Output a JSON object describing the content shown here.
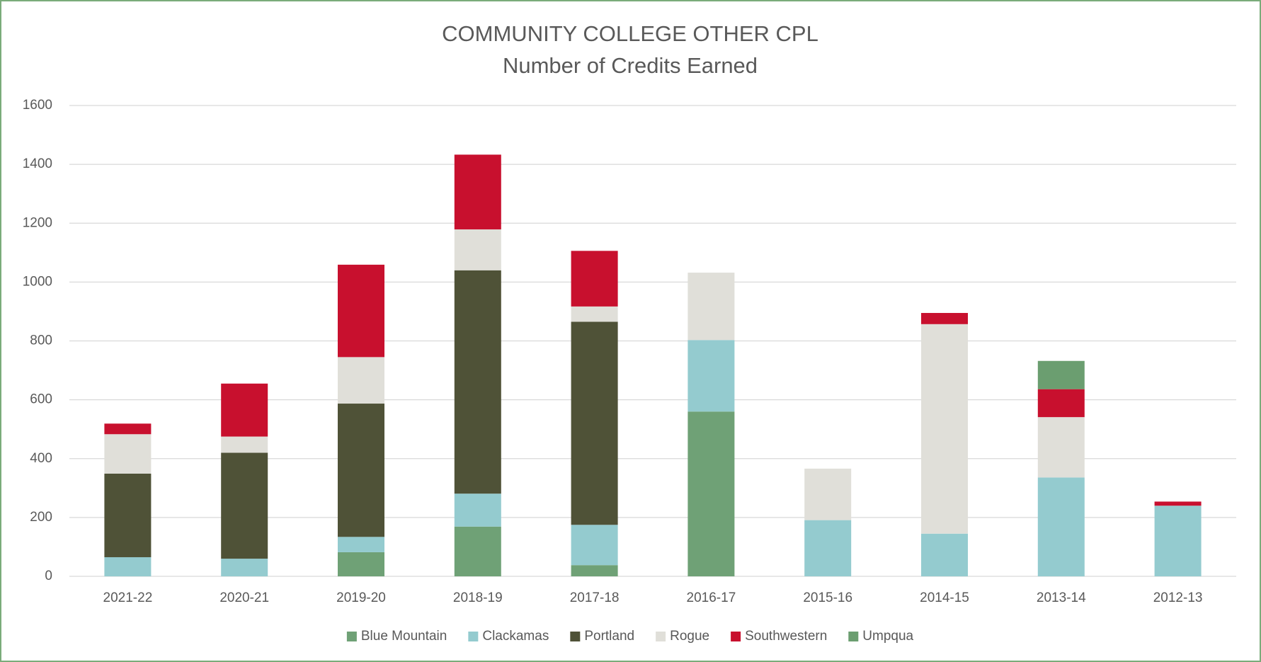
{
  "chart_data": {
    "type": "stacked_bar",
    "title": "COMMUNITY COLLEGE OTHER CPL",
    "subtitle": "Number of Credits Earned",
    "categories": [
      "2021-22",
      "2020-21",
      "2019-20",
      "2018-19",
      "2017-18",
      "2016-17",
      "2015-16",
      "2014-15",
      "2013-14",
      "2012-13"
    ],
    "series": [
      {
        "name": "Blue Mountain",
        "color": "#6fa176",
        "values": [
          null,
          null,
          82,
          169,
          38,
          560,
          null,
          null,
          null,
          null
        ]
      },
      {
        "name": "Clackamas",
        "color": "#94cbcf",
        "values": [
          65,
          60,
          52,
          112,
          137,
          243,
          191,
          145,
          336,
          240
        ]
      },
      {
        "name": "Portland",
        "color": "#4f5237",
        "values": [
          284,
          360,
          453,
          759,
          690,
          null,
          null,
          null,
          null,
          null
        ]
      },
      {
        "name": "Rogue",
        "color": "#e0dfd9",
        "values": [
          134,
          55,
          158,
          139,
          52,
          229,
          175,
          712,
          205,
          null
        ]
      },
      {
        "name": "Southwestern",
        "color": "#c8102e",
        "values": [
          36,
          180,
          314,
          254,
          189,
          null,
          null,
          38,
          95,
          14
        ]
      },
      {
        "name": "Umpqua",
        "color": "#6b9e70",
        "values": [
          null,
          null,
          null,
          null,
          null,
          null,
          null,
          null,
          96,
          null
        ]
      }
    ],
    "ylim": [
      0,
      1600
    ],
    "yticks": [
      0,
      200,
      400,
      600,
      800,
      1000,
      1200,
      1400,
      1600
    ],
    "grid": true,
    "legend": "bottom"
  }
}
